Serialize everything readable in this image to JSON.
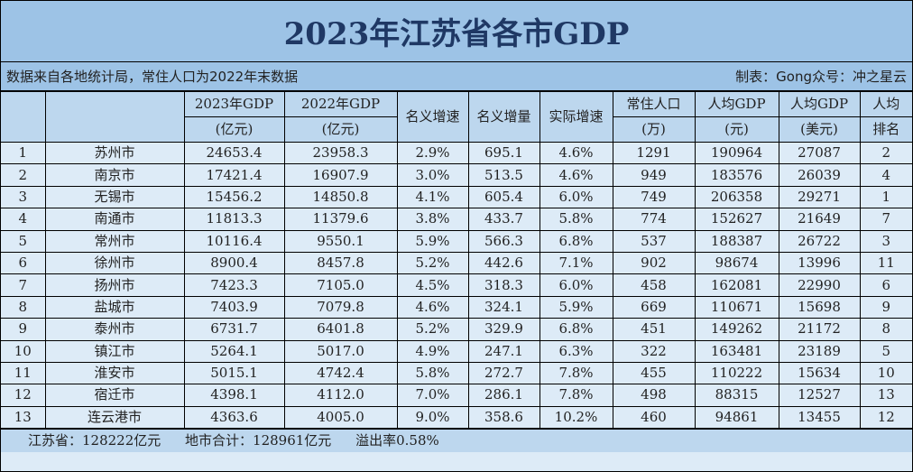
{
  "title": "2023年江苏省各市GDP",
  "note_left": "数据来自各地统计局，常住人口为2022年末数据",
  "note_right": "制表：Gong众号：冲之星云",
  "colors": {
    "title_bg": "#9dc3e6",
    "header_bg": "#bdd7ee",
    "row_bg": "#ddebf7",
    "title_text": "#1f3864"
  },
  "headers": [
    {
      "l1": "",
      "l2": ""
    },
    {
      "l1": "",
      "l2": ""
    },
    {
      "l1": "2023年GDP",
      "l2": "(亿元)"
    },
    {
      "l1": "2022年GDP",
      "l2": "(亿元)"
    },
    {
      "l1": "名义增速",
      "l2": ""
    },
    {
      "l1": "名义增量",
      "l2": ""
    },
    {
      "l1": "实际增速",
      "l2": ""
    },
    {
      "l1": "常住人口",
      "l2": "(万)"
    },
    {
      "l1": "人均GDP",
      "l2": "(元)"
    },
    {
      "l1": "人均GDP",
      "l2": "(美元)"
    },
    {
      "l1": "人均",
      "l2": "排名"
    }
  ],
  "rows": [
    [
      "1",
      "苏州市",
      "24653.4",
      "23958.3",
      "2.9%",
      "695.1",
      "4.6%",
      "1291",
      "190964",
      "27087",
      "2"
    ],
    [
      "2",
      "南京市",
      "17421.4",
      "16907.9",
      "3.0%",
      "513.5",
      "4.6%",
      "949",
      "183576",
      "26039",
      "4"
    ],
    [
      "3",
      "无锡市",
      "15456.2",
      "14850.8",
      "4.1%",
      "605.4",
      "6.0%",
      "749",
      "206358",
      "29271",
      "1"
    ],
    [
      "4",
      "南通市",
      "11813.3",
      "11379.6",
      "3.8%",
      "433.7",
      "5.8%",
      "774",
      "152627",
      "21649",
      "7"
    ],
    [
      "5",
      "常州市",
      "10116.4",
      "9550.1",
      "5.9%",
      "566.3",
      "6.8%",
      "537",
      "188387",
      "26722",
      "3"
    ],
    [
      "6",
      "徐州市",
      "8900.4",
      "8457.8",
      "5.2%",
      "442.6",
      "7.1%",
      "902",
      "98674",
      "13996",
      "11"
    ],
    [
      "7",
      "扬州市",
      "7423.3",
      "7105.0",
      "4.5%",
      "318.3",
      "6.0%",
      "458",
      "162081",
      "22990",
      "6"
    ],
    [
      "8",
      "盐城市",
      "7403.9",
      "7079.8",
      "4.6%",
      "324.1",
      "5.9%",
      "669",
      "110671",
      "15698",
      "9"
    ],
    [
      "9",
      "泰州市",
      "6731.7",
      "6401.8",
      "5.2%",
      "329.9",
      "6.8%",
      "451",
      "149262",
      "21172",
      "8"
    ],
    [
      "10",
      "镇江市",
      "5264.1",
      "5017.0",
      "4.9%",
      "247.1",
      "6.3%",
      "322",
      "163481",
      "23189",
      "5"
    ],
    [
      "11",
      "淮安市",
      "5015.1",
      "4742.4",
      "5.8%",
      "272.7",
      "7.8%",
      "455",
      "110222",
      "15634",
      "10"
    ],
    [
      "12",
      "宿迁市",
      "4398.1",
      "4112.0",
      "7.0%",
      "286.1",
      "7.8%",
      "498",
      "88315",
      "12527",
      "13"
    ],
    [
      "13",
      "连云港市",
      "4363.6",
      "4005.0",
      "9.0%",
      "358.6",
      "10.2%",
      "460",
      "94861",
      "13455",
      "12"
    ]
  ],
  "footer": {
    "province_total": "江苏省：128222亿元",
    "city_sum": "地市合计：128961亿元",
    "overflow_rate": "溢出率0.58%"
  }
}
